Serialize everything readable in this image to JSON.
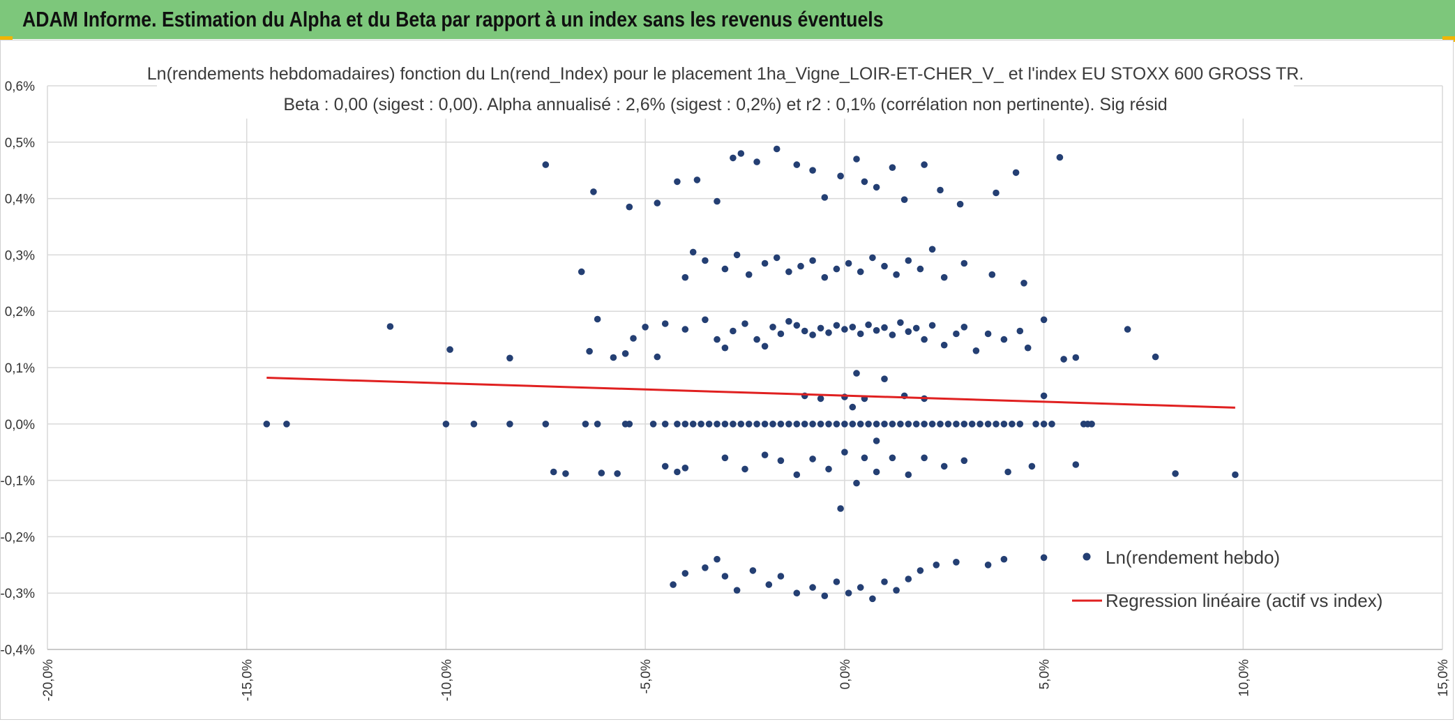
{
  "header": {
    "title": "ADAM Informe. Estimation du Alpha et du Beta par rapport à un index sans les revenus éventuels"
  },
  "chart_data": {
    "type": "scatter",
    "title": "Ln(rendements hebdomadaires) fonction du Ln(rend_Index) pour le placement 1ha_Vigne_LOIR-ET-CHER_V_ et l'index EU STOXX 600 GROSS TR.",
    "subtitle": "Beta : 0,00 (sigest : 0,00). Alpha annualisé : 2,6% (sigest : 0,2%) et r2 : 0,1% (corrélation non pertinente). Sig résid",
    "xlabel": "",
    "ylabel": "",
    "xlim": [
      -0.2,
      0.15
    ],
    "ylim": [
      -0.004,
      0.006
    ],
    "x_ticks": [
      -0.2,
      -0.15,
      -0.1,
      -0.05,
      0.0,
      0.05,
      0.1,
      0.15
    ],
    "x_tick_labels": [
      "-20,0%",
      "-15,0%",
      "-10,0%",
      "-5,0%",
      "0,0%",
      "5,0%",
      "10,0%",
      "15,0%"
    ],
    "y_ticks": [
      0.006,
      0.005,
      0.004,
      0.003,
      0.002,
      0.001,
      0.0,
      -0.001,
      -0.002,
      -0.003,
      -0.004
    ],
    "y_tick_labels": [
      "0,6%",
      "0,5%",
      "0,4%",
      "0,3%",
      "0,2%",
      "0,1%",
      "0,0%",
      "-0,1%",
      "-0,2%",
      "-0,3%",
      "-0,4%"
    ],
    "grid": true,
    "legend_position": "bottom-right",
    "series": [
      {
        "name": "Ln(rendement hebdo)",
        "kind": "scatter",
        "color": "#243f73",
        "points": [
          [
            -0.145,
            0.0
          ],
          [
            -0.14,
            0.0
          ],
          [
            -0.1,
            0.0
          ],
          [
            -0.093,
            0.0
          ],
          [
            -0.084,
            0.0
          ],
          [
            -0.075,
            0.0
          ],
          [
            -0.065,
            0.0
          ],
          [
            -0.062,
            0.0
          ],
          [
            -0.055,
            0.0
          ],
          [
            -0.054,
            0.0
          ],
          [
            -0.048,
            0.0
          ],
          [
            -0.045,
            0.0
          ],
          [
            -0.042,
            0.0
          ],
          [
            -0.04,
            0.0
          ],
          [
            -0.038,
            0.0
          ],
          [
            -0.036,
            0.0
          ],
          [
            -0.034,
            0.0
          ],
          [
            -0.032,
            0.0
          ],
          [
            -0.03,
            0.0
          ],
          [
            -0.028,
            0.0
          ],
          [
            -0.026,
            0.0
          ],
          [
            -0.024,
            0.0
          ],
          [
            -0.022,
            0.0
          ],
          [
            -0.02,
            0.0
          ],
          [
            -0.018,
            0.0
          ],
          [
            -0.016,
            0.0
          ],
          [
            -0.014,
            0.0
          ],
          [
            -0.012,
            0.0
          ],
          [
            -0.01,
            0.0
          ],
          [
            -0.008,
            0.0
          ],
          [
            -0.006,
            0.0
          ],
          [
            -0.004,
            0.0
          ],
          [
            -0.002,
            0.0
          ],
          [
            0.0,
            0.0
          ],
          [
            0.002,
            0.0
          ],
          [
            0.004,
            0.0
          ],
          [
            0.006,
            0.0
          ],
          [
            0.008,
            0.0
          ],
          [
            0.01,
            0.0
          ],
          [
            0.012,
            0.0
          ],
          [
            0.014,
            0.0
          ],
          [
            0.016,
            0.0
          ],
          [
            0.018,
            0.0
          ],
          [
            0.02,
            0.0
          ],
          [
            0.022,
            0.0
          ],
          [
            0.024,
            0.0
          ],
          [
            0.026,
            0.0
          ],
          [
            0.028,
            0.0
          ],
          [
            0.03,
            0.0
          ],
          [
            0.032,
            0.0
          ],
          [
            0.034,
            0.0
          ],
          [
            0.036,
            0.0
          ],
          [
            0.038,
            0.0
          ],
          [
            0.04,
            0.0
          ],
          [
            0.042,
            0.0
          ],
          [
            0.044,
            0.0
          ],
          [
            0.048,
            0.0
          ],
          [
            0.05,
            0.0
          ],
          [
            0.052,
            0.0
          ],
          [
            0.06,
            0.0
          ],
          [
            0.061,
            0.0
          ],
          [
            0.062,
            0.0
          ],
          [
            -0.114,
            0.00173
          ],
          [
            -0.099,
            0.00132
          ],
          [
            -0.084,
            0.00117
          ],
          [
            -0.064,
            0.00129
          ],
          [
            -0.062,
            0.00186
          ],
          [
            -0.058,
            0.00118
          ],
          [
            -0.055,
            0.00125
          ],
          [
            -0.053,
            0.00152
          ],
          [
            -0.05,
            0.00172
          ],
          [
            -0.047,
            0.00119
          ],
          [
            -0.045,
            0.00178
          ],
          [
            -0.04,
            0.00168
          ],
          [
            -0.035,
            0.00185
          ],
          [
            -0.032,
            0.0015
          ],
          [
            -0.03,
            0.00135
          ],
          [
            -0.028,
            0.00165
          ],
          [
            -0.025,
            0.00178
          ],
          [
            -0.022,
            0.0015
          ],
          [
            -0.02,
            0.00138
          ],
          [
            -0.018,
            0.00172
          ],
          [
            -0.016,
            0.0016
          ],
          [
            -0.014,
            0.00182
          ],
          [
            -0.012,
            0.00175
          ],
          [
            -0.01,
            0.00165
          ],
          [
            -0.008,
            0.00158
          ],
          [
            -0.006,
            0.0017
          ],
          [
            -0.004,
            0.00162
          ],
          [
            -0.002,
            0.00175
          ],
          [
            0.0,
            0.00168
          ],
          [
            0.002,
            0.00172
          ],
          [
            0.004,
            0.0016
          ],
          [
            0.006,
            0.00176
          ],
          [
            0.008,
            0.00166
          ],
          [
            0.01,
            0.00171
          ],
          [
            0.012,
            0.00158
          ],
          [
            0.014,
            0.0018
          ],
          [
            0.016,
            0.00164
          ],
          [
            0.018,
            0.0017
          ],
          [
            0.02,
            0.0015
          ],
          [
            0.022,
            0.00175
          ],
          [
            0.025,
            0.0014
          ],
          [
            0.028,
            0.0016
          ],
          [
            0.03,
            0.00172
          ],
          [
            0.033,
            0.0013
          ],
          [
            0.036,
            0.0016
          ],
          [
            0.04,
            0.0015
          ],
          [
            0.044,
            0.00165
          ],
          [
            0.046,
            0.00135
          ],
          [
            0.05,
            0.00185
          ],
          [
            0.055,
            0.00115
          ],
          [
            0.058,
            0.00118
          ],
          [
            0.071,
            0.00168
          ],
          [
            0.078,
            0.00119
          ],
          [
            -0.066,
            0.0027
          ],
          [
            -0.04,
            0.0026
          ],
          [
            -0.038,
            0.00305
          ],
          [
            -0.035,
            0.0029
          ],
          [
            -0.03,
            0.00275
          ],
          [
            -0.027,
            0.003
          ],
          [
            -0.024,
            0.00265
          ],
          [
            -0.02,
            0.00285
          ],
          [
            -0.017,
            0.00295
          ],
          [
            -0.014,
            0.0027
          ],
          [
            -0.011,
            0.0028
          ],
          [
            -0.008,
            0.0029
          ],
          [
            -0.005,
            0.0026
          ],
          [
            -0.002,
            0.00275
          ],
          [
            0.001,
            0.00285
          ],
          [
            0.004,
            0.0027
          ],
          [
            0.007,
            0.00295
          ],
          [
            0.01,
            0.0028
          ],
          [
            0.013,
            0.00265
          ],
          [
            0.016,
            0.0029
          ],
          [
            0.019,
            0.00275
          ],
          [
            0.022,
            0.0031
          ],
          [
            0.025,
            0.0026
          ],
          [
            0.03,
            0.00285
          ],
          [
            0.037,
            0.00265
          ],
          [
            0.045,
            0.0025
          ],
          [
            -0.075,
            0.0046
          ],
          [
            -0.063,
            0.00412
          ],
          [
            -0.054,
            0.00385
          ],
          [
            -0.047,
            0.00392
          ],
          [
            -0.042,
            0.0043
          ],
          [
            -0.037,
            0.00433
          ],
          [
            -0.032,
            0.00395
          ],
          [
            -0.028,
            0.00472
          ],
          [
            -0.026,
            0.0048
          ],
          [
            -0.022,
            0.00465
          ],
          [
            -0.017,
            0.00488
          ],
          [
            -0.012,
            0.0046
          ],
          [
            -0.008,
            0.0045
          ],
          [
            -0.005,
            0.00402
          ],
          [
            -0.001,
            0.0044
          ],
          [
            0.003,
            0.0047
          ],
          [
            0.005,
            0.0043
          ],
          [
            0.008,
            0.0042
          ],
          [
            0.012,
            0.00455
          ],
          [
            0.015,
            0.00398
          ],
          [
            0.02,
            0.0046
          ],
          [
            0.024,
            0.00415
          ],
          [
            0.029,
            0.0039
          ],
          [
            0.038,
            0.0041
          ],
          [
            0.043,
            0.00446
          ],
          [
            0.054,
            0.00473
          ],
          [
            -0.01,
            0.0005
          ],
          [
            -0.006,
            0.00045
          ],
          [
            0.0,
            0.00048
          ],
          [
            0.003,
            0.0009
          ],
          [
            0.005,
            0.00045
          ],
          [
            0.01,
            0.0008
          ],
          [
            0.015,
            0.0005
          ],
          [
            0.02,
            0.00045
          ],
          [
            0.05,
            0.0005
          ],
          [
            0.002,
            0.0003
          ],
          [
            -0.073,
            -0.00085
          ],
          [
            -0.07,
            -0.00088
          ],
          [
            -0.061,
            -0.00087
          ],
          [
            -0.057,
            -0.00088
          ],
          [
            -0.045,
            -0.00075
          ],
          [
            -0.042,
            -0.00085
          ],
          [
            -0.04,
            -0.00078
          ],
          [
            -0.03,
            -0.0006
          ],
          [
            -0.025,
            -0.0008
          ],
          [
            -0.02,
            -0.00055
          ],
          [
            -0.016,
            -0.00065
          ],
          [
            -0.012,
            -0.0009
          ],
          [
            -0.008,
            -0.00062
          ],
          [
            -0.004,
            -0.0008
          ],
          [
            0.0,
            -0.0005
          ],
          [
            0.003,
            -0.00105
          ],
          [
            0.005,
            -0.0006
          ],
          [
            0.008,
            -0.00085
          ],
          [
            0.012,
            -0.0006
          ],
          [
            0.016,
            -0.0009
          ],
          [
            0.02,
            -0.0006
          ],
          [
            0.025,
            -0.00075
          ],
          [
            0.03,
            -0.00065
          ],
          [
            0.041,
            -0.00085
          ],
          [
            0.047,
            -0.00075
          ],
          [
            0.058,
            -0.00072
          ],
          [
            0.083,
            -0.00088
          ],
          [
            0.098,
            -0.0009
          ],
          [
            -0.001,
            -0.0015
          ],
          [
            0.008,
            -0.0003
          ],
          [
            -0.043,
            -0.00285
          ],
          [
            -0.04,
            -0.00265
          ],
          [
            -0.035,
            -0.00255
          ],
          [
            -0.032,
            -0.0024
          ],
          [
            -0.03,
            -0.0027
          ],
          [
            -0.027,
            -0.00295
          ],
          [
            -0.023,
            -0.0026
          ],
          [
            -0.019,
            -0.00285
          ],
          [
            -0.016,
            -0.0027
          ],
          [
            -0.012,
            -0.003
          ],
          [
            -0.008,
            -0.0029
          ],
          [
            -0.005,
            -0.00305
          ],
          [
            -0.002,
            -0.0028
          ],
          [
            0.001,
            -0.003
          ],
          [
            0.004,
            -0.0029
          ],
          [
            0.007,
            -0.0031
          ],
          [
            0.01,
            -0.0028
          ],
          [
            0.013,
            -0.00295
          ],
          [
            0.016,
            -0.00275
          ],
          [
            0.019,
            -0.0026
          ],
          [
            0.023,
            -0.0025
          ],
          [
            0.028,
            -0.00245
          ],
          [
            0.036,
            -0.0025
          ],
          [
            0.04,
            -0.0024
          ],
          [
            0.05,
            -0.00237
          ]
        ]
      },
      {
        "name": "Regression linéaire (actif vs index)",
        "kind": "line",
        "color": "#e02020",
        "points": [
          [
            -0.145,
            0.00082
          ],
          [
            0.098,
            0.00029
          ]
        ]
      }
    ]
  }
}
